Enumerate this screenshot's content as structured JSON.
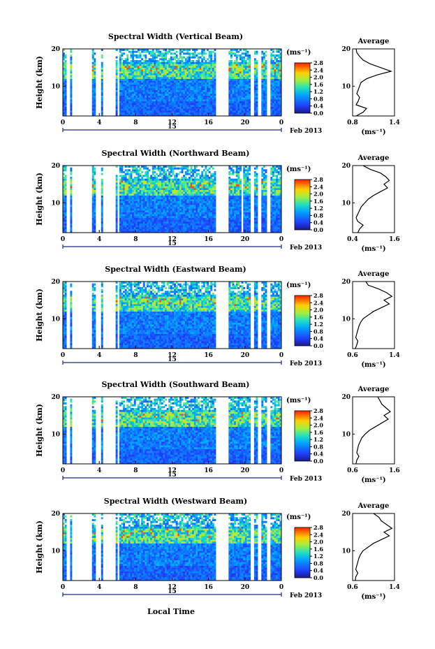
{
  "figure": {
    "xlabel_bottom": "Local Time",
    "date_label": "Feb 2013",
    "day_label": "15",
    "unit_label": "(ms⁻¹)",
    "avg_unit_label": "(ms⁻¹)",
    "avg_title": "Average",
    "ylabel": "Height (km)"
  },
  "chart_data": [
    {
      "type": "heatmap",
      "title": "Spectral Width (Vertical Beam)",
      "xlabel": "",
      "ylabel": "Height (km)",
      "xlim": [
        0,
        24
      ],
      "ylim": [
        2,
        20
      ],
      "x_ticks": [
        "0",
        "4",
        "8",
        "12",
        "16",
        "20",
        "0"
      ],
      "y_ticks": [
        "10",
        "20"
      ],
      "colorbar": {
        "label": "(ms⁻¹)",
        "range": [
          0.0,
          2.8
        ],
        "ticks": [
          "2.8",
          "2.4",
          "2.0",
          "1.6",
          "1.2",
          "0.8",
          "0.4",
          "0.0"
        ]
      },
      "data_gaps_hours": [
        [
          0.5,
          0.8
        ],
        [
          1.0,
          3.2
        ],
        [
          3.6,
          4.2
        ],
        [
          4.5,
          5.7
        ],
        [
          6.0,
          6.3
        ],
        [
          16.8,
          18.2
        ],
        [
          20.6,
          21.0
        ],
        [
          21.4,
          21.8
        ],
        [
          22.4,
          22.7
        ]
      ],
      "profile": {
        "title": "Average",
        "xlabel": "(ms⁻¹)",
        "x_ticks": [
          "0.8",
          "1.4"
        ],
        "xlim": [
          0.8,
          1.4
        ],
        "y_ticks": [
          "10",
          "20"
        ],
        "heights": [
          2,
          3,
          4,
          5,
          6,
          7,
          8,
          9,
          10,
          11,
          12,
          13,
          14,
          15,
          16,
          17,
          18,
          19,
          20
        ],
        "values": [
          0.85,
          0.95,
          1.0,
          0.85,
          0.88,
          0.9,
          0.86,
          0.88,
          0.9,
          0.92,
          1.0,
          1.15,
          1.35,
          1.2,
          1.05,
          0.95,
          0.9,
          0.86,
          0.85
        ]
      }
    },
    {
      "type": "heatmap",
      "title": "Spectral Width (Northward Beam)",
      "xlabel": "",
      "ylabel": "Height (km)",
      "xlim": [
        0,
        24
      ],
      "ylim": [
        2,
        20
      ],
      "x_ticks": [
        "0",
        "4",
        "8",
        "12",
        "16",
        "20",
        "0"
      ],
      "y_ticks": [
        "10",
        "20"
      ],
      "colorbar": {
        "label": "(ms⁻¹)",
        "range": [
          0.0,
          2.8
        ],
        "ticks": [
          "2.8",
          "2.4",
          "2.0",
          "1.6",
          "1.2",
          "0.8",
          "0.4",
          "0.0"
        ]
      },
      "data_gaps_hours": [
        [
          0.5,
          0.8
        ],
        [
          1.0,
          3.2
        ],
        [
          3.6,
          4.2
        ],
        [
          4.5,
          5.7
        ],
        [
          6.0,
          6.3
        ],
        [
          16.8,
          18.2
        ],
        [
          19.6,
          19.8
        ],
        [
          20.6,
          21.0
        ],
        [
          21.4,
          21.8
        ],
        [
          22.4,
          22.7
        ]
      ],
      "profile": {
        "title": "Average",
        "xlabel": "(ms⁻¹)",
        "x_ticks": [
          "0.4",
          "1.6"
        ],
        "xlim": [
          0.4,
          1.6
        ],
        "y_ticks": [
          "10",
          "20"
        ],
        "heights": [
          2,
          3,
          4,
          5,
          6,
          7,
          8,
          9,
          10,
          11,
          12,
          13,
          14,
          15,
          16,
          17,
          18,
          19,
          20
        ],
        "values": [
          0.55,
          0.6,
          0.7,
          0.55,
          0.5,
          0.55,
          0.6,
          0.65,
          0.75,
          0.85,
          1.0,
          1.2,
          1.4,
          1.3,
          1.45,
          1.35,
          1.2,
          0.9,
          0.7
        ]
      }
    },
    {
      "type": "heatmap",
      "title": "Spectral Width (Eastward Beam)",
      "xlabel": "",
      "ylabel": "Height (km)",
      "xlim": [
        0,
        24
      ],
      "ylim": [
        2,
        20
      ],
      "x_ticks": [
        "0",
        "4",
        "8",
        "12",
        "16",
        "20",
        "0"
      ],
      "y_ticks": [
        "10",
        "20"
      ],
      "colorbar": {
        "label": "(ms⁻¹)",
        "range": [
          0.0,
          2.8
        ],
        "ticks": [
          "2.8",
          "2.4",
          "2.0",
          "1.6",
          "1.2",
          "0.8",
          "0.4",
          "0.0"
        ]
      },
      "data_gaps_hours": [
        [
          0.5,
          0.8
        ],
        [
          1.0,
          3.2
        ],
        [
          3.6,
          4.2
        ],
        [
          4.5,
          5.7
        ],
        [
          6.0,
          6.3
        ],
        [
          16.8,
          18.2
        ],
        [
          20.6,
          21.0
        ],
        [
          21.4,
          21.8
        ],
        [
          22.4,
          22.7
        ]
      ],
      "profile": {
        "title": "Average",
        "xlabel": "(ms⁻¹)",
        "x_ticks": [
          "0.6",
          "1.4"
        ],
        "xlim": [
          0.6,
          1.4
        ],
        "y_ticks": [
          "10",
          "20"
        ],
        "heights": [
          2,
          3,
          4,
          5,
          6,
          7,
          8,
          9,
          10,
          11,
          12,
          13,
          14,
          15,
          16,
          17,
          18,
          19,
          20
        ],
        "values": [
          0.65,
          0.68,
          0.7,
          0.66,
          0.68,
          0.7,
          0.72,
          0.75,
          0.8,
          0.9,
          1.0,
          1.15,
          1.3,
          1.2,
          1.35,
          1.25,
          1.1,
          0.9,
          0.85
        ]
      }
    },
    {
      "type": "heatmap",
      "title": "Spectral Width (Southward Beam)",
      "xlabel": "",
      "ylabel": "Height (km)",
      "xlim": [
        0,
        24
      ],
      "ylim": [
        2,
        20
      ],
      "x_ticks": [
        "0",
        "4",
        "8",
        "12",
        "16",
        "20",
        "0"
      ],
      "y_ticks": [
        "10",
        "20"
      ],
      "colorbar": {
        "label": "(ms⁻¹)",
        "range": [
          0.0,
          2.8
        ],
        "ticks": [
          "2.8",
          "2.4",
          "2.0",
          "1.6",
          "1.2",
          "0.8",
          "0.4",
          "0.0"
        ]
      },
      "data_gaps_hours": [
        [
          0.5,
          0.8
        ],
        [
          1.0,
          3.2
        ],
        [
          3.6,
          4.2
        ],
        [
          4.5,
          5.7
        ],
        [
          6.0,
          6.3
        ],
        [
          16.8,
          18.2
        ],
        [
          20.6,
          21.0
        ],
        [
          21.4,
          21.8
        ],
        [
          22.4,
          22.7
        ]
      ],
      "profile": {
        "title": "Average",
        "xlabel": "(ms⁻¹)",
        "x_ticks": [
          "0.6",
          "1.6"
        ],
        "xlim": [
          0.6,
          1.6
        ],
        "y_ticks": [
          "10",
          "20"
        ],
        "heights": [
          2,
          3,
          4,
          5,
          6,
          7,
          8,
          9,
          10,
          11,
          12,
          13,
          14,
          15,
          16,
          17,
          18,
          19,
          20
        ],
        "values": [
          0.68,
          0.7,
          0.75,
          0.7,
          0.72,
          0.74,
          0.78,
          0.82,
          0.9,
          1.0,
          1.15,
          1.3,
          1.45,
          1.35,
          1.5,
          1.4,
          1.3,
          1.25,
          1.2
        ]
      }
    },
    {
      "type": "heatmap",
      "title": "Spectral Width (Westward Beam)",
      "xlabel": "Local Time",
      "ylabel": "Height (km)",
      "xlim": [
        0,
        24
      ],
      "ylim": [
        2,
        20
      ],
      "x_ticks": [
        "0",
        "4",
        "8",
        "12",
        "16",
        "20",
        "0"
      ],
      "y_ticks": [
        "10",
        "20"
      ],
      "colorbar": {
        "label": "(ms⁻¹)",
        "range": [
          0.0,
          2.8
        ],
        "ticks": [
          "2.8",
          "2.4",
          "2.0",
          "1.6",
          "1.2",
          "0.8",
          "0.4",
          "0.0"
        ]
      },
      "data_gaps_hours": [
        [
          0.5,
          0.8
        ],
        [
          1.0,
          3.2
        ],
        [
          3.6,
          4.2
        ],
        [
          4.5,
          5.7
        ],
        [
          6.0,
          6.3
        ],
        [
          16.8,
          18.2
        ],
        [
          20.6,
          21.0
        ],
        [
          21.4,
          21.8
        ],
        [
          22.4,
          22.7
        ]
      ],
      "profile": {
        "title": "Average",
        "xlabel": "(ms⁻¹)",
        "x_ticks": [
          "0.6",
          "1.4"
        ],
        "xlim": [
          0.6,
          1.4
        ],
        "y_ticks": [
          "10",
          "20"
        ],
        "heights": [
          2,
          3,
          4,
          5,
          6,
          7,
          8,
          9,
          10,
          11,
          12,
          13,
          14,
          15,
          16,
          17,
          18,
          19,
          20
        ],
        "values": [
          0.65,
          0.66,
          0.7,
          0.66,
          0.68,
          0.7,
          0.72,
          0.75,
          0.8,
          0.9,
          1.0,
          1.15,
          1.3,
          1.2,
          1.35,
          1.25,
          1.15,
          1.1,
          1.0
        ]
      }
    }
  ]
}
